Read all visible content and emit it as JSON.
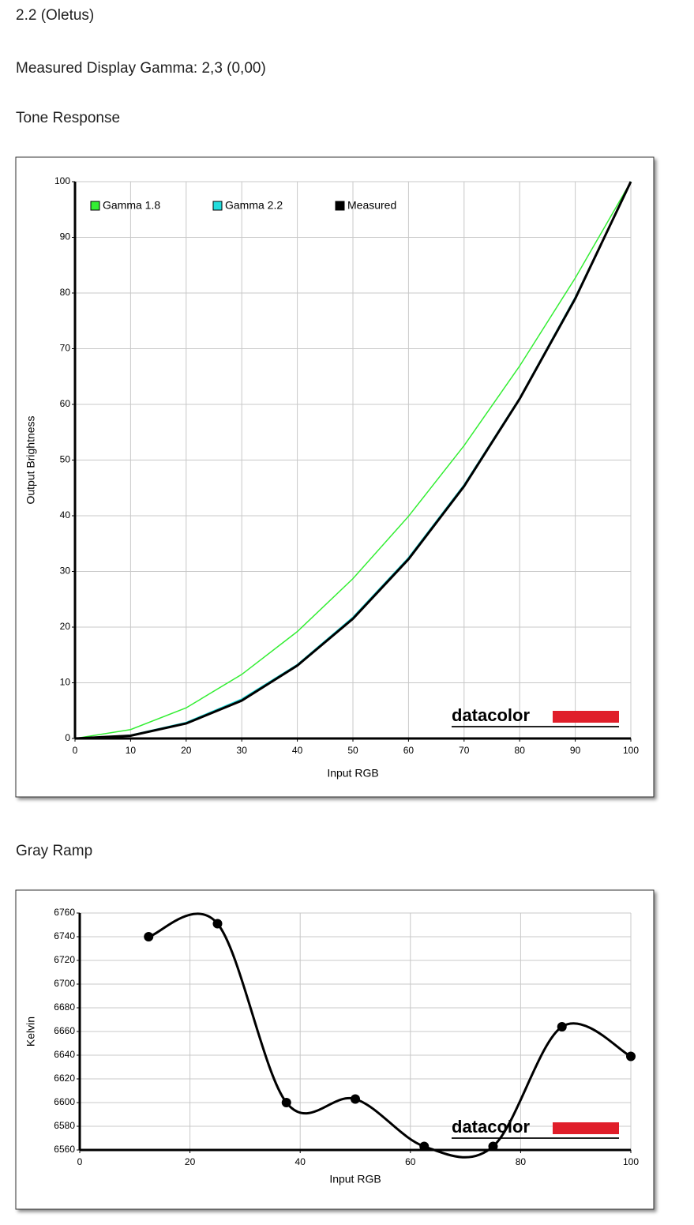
{
  "header": {
    "lines": [
      "2.2 (Oletus)",
      "Measured Display Gamma: 2,3 (0,00)"
    ]
  },
  "chart_data": [
    {
      "type": "line",
      "title": "Tone Response",
      "x_label": "Input RGB",
      "y_label": "Output Brightness",
      "x": [
        0,
        10,
        20,
        30,
        40,
        50,
        60,
        70,
        80,
        90,
        100
      ],
      "series": [
        {
          "name": "Gamma 1.8",
          "color": "#33ee33",
          "values": [
            0,
            1.6,
            5.5,
            11.5,
            19.2,
            28.7,
            39.9,
            52.6,
            66.9,
            82.7,
            100
          ]
        },
        {
          "name": "Gamma 2.2",
          "color": "#22dddd",
          "values": [
            0,
            0.6,
            2.9,
            7.1,
            13.3,
            21.8,
            32.5,
            45.6,
            61.2,
            79.3,
            100
          ]
        },
        {
          "name": "Measured",
          "color": "#000000",
          "values": [
            0,
            0.5,
            2.7,
            6.8,
            13.1,
            21.5,
            32.2,
            45.3,
            61,
            79,
            100
          ]
        }
      ],
      "xlim": [
        0,
        100
      ],
      "xticks": [
        0,
        10,
        20,
        30,
        40,
        50,
        60,
        70,
        80,
        90,
        100
      ],
      "ylim": [
        0,
        100
      ],
      "yticks": [
        0,
        10,
        20,
        30,
        40,
        50,
        60,
        70,
        80,
        90,
        100
      ],
      "grid": true,
      "legend": "top-left",
      "watermark": "datacolor"
    },
    {
      "type": "line",
      "title": "Gray Ramp",
      "x_label": "Input RGB",
      "y_label": "Kelvin",
      "x": [
        12.5,
        25,
        37.5,
        50,
        62.5,
        75,
        87.5,
        100
      ],
      "values": [
        6740,
        6751,
        6600,
        6603,
        6563,
        6563,
        6664,
        6639
      ],
      "color": "#000000",
      "markers": true,
      "smooth": true,
      "xlim": [
        0,
        100
      ],
      "xticks": [
        0,
        20,
        40,
        60,
        80,
        100
      ],
      "ylim": [
        6560,
        6760
      ],
      "yticks": [
        6560,
        6580,
        6600,
        6620,
        6640,
        6660,
        6680,
        6700,
        6720,
        6740,
        6760
      ],
      "grid": true,
      "watermark": "datacolor"
    }
  ]
}
